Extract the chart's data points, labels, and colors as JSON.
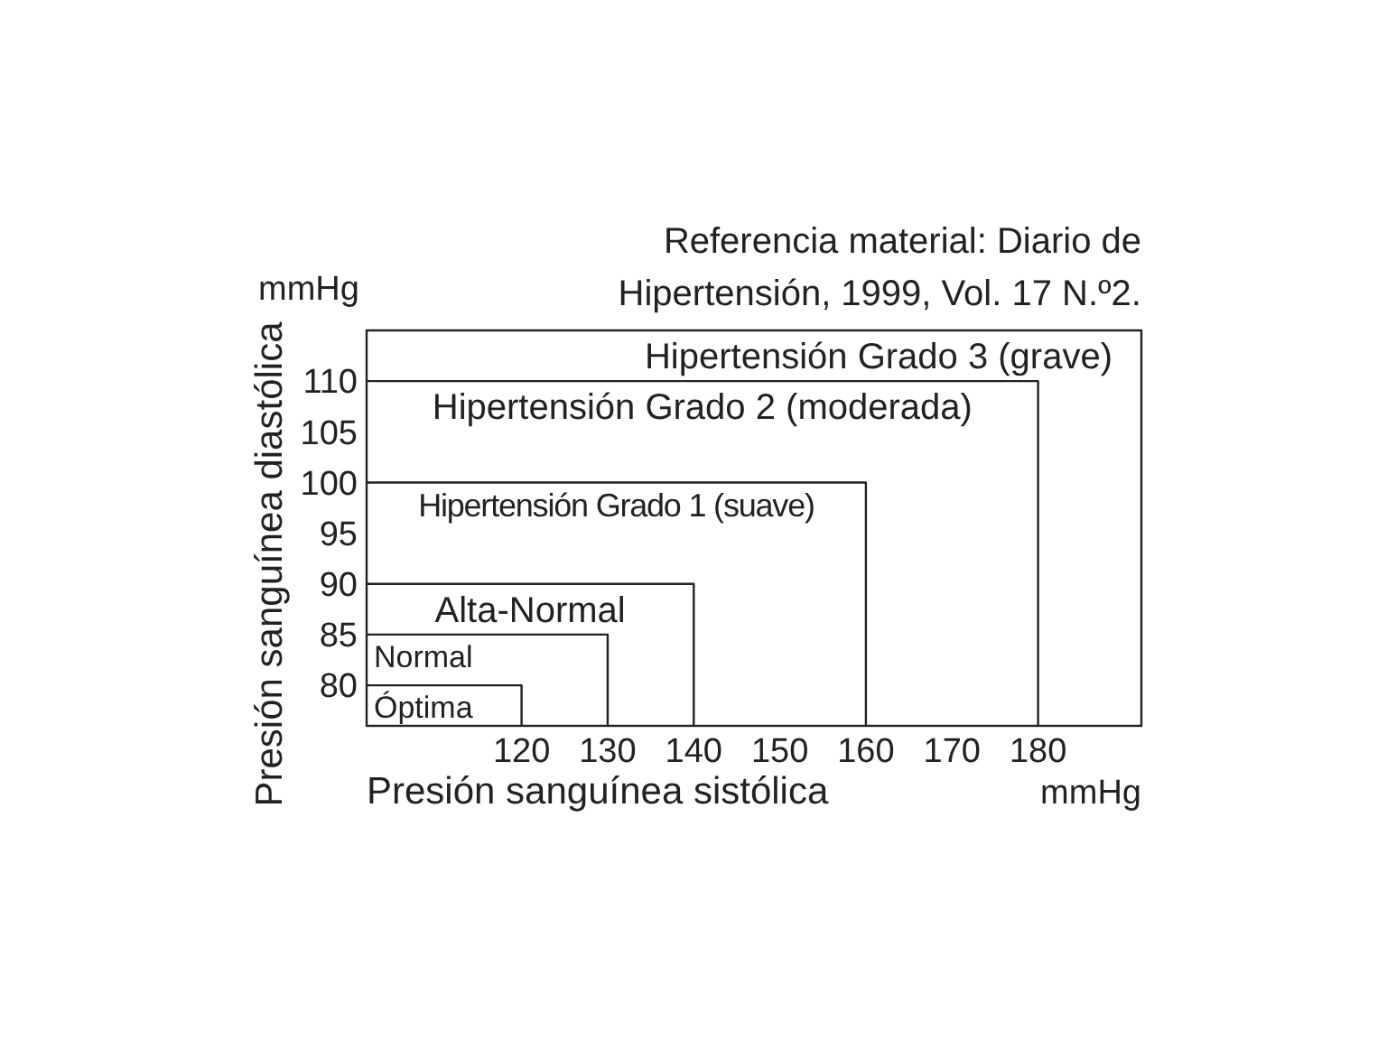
{
  "chart_data": {
    "type": "line",
    "marker": "none",
    "line_style": "solid",
    "series": [
      {
        "name": "Óptima",
        "color": "#222222",
        "x": [
          102,
          120,
          120
        ],
        "values": [
          80,
          80,
          76
        ]
      },
      {
        "name": "Normal",
        "color": "#222222",
        "x": [
          102,
          130,
          130
        ],
        "values": [
          85,
          85,
          76
        ]
      },
      {
        "name": "Alta-Normal",
        "color": "#222222",
        "x": [
          102,
          140,
          140
        ],
        "values": [
          90,
          90,
          76
        ]
      },
      {
        "name": "Hipertensión Grado 1 (suave)",
        "color": "#222222",
        "x": [
          102,
          160,
          160
        ],
        "values": [
          100,
          100,
          76
        ]
      },
      {
        "name": "Hipertensión Grado 2 (moderada)",
        "color": "#222222",
        "x": [
          102,
          180,
          180
        ],
        "values": [
          110,
          110,
          76
        ]
      }
    ],
    "xlabel": "Presión sanguínea sistólica",
    "ylabel": "Presión sanguínea diastólica",
    "xlim": [
      102,
      192
    ],
    "ylim": [
      76,
      115
    ],
    "xticks": [
      120,
      130,
      140,
      150,
      160,
      170,
      180
    ],
    "yticks": [
      80,
      85,
      90,
      95,
      100,
      105,
      110
    ],
    "annotations": [
      "Referencia material: Diario de Hipertensión, 1999, Vol. 17 N.º2.",
      "Hipertensión Grado 3 (grave)",
      "mmHg",
      "mmHg"
    ]
  }
}
